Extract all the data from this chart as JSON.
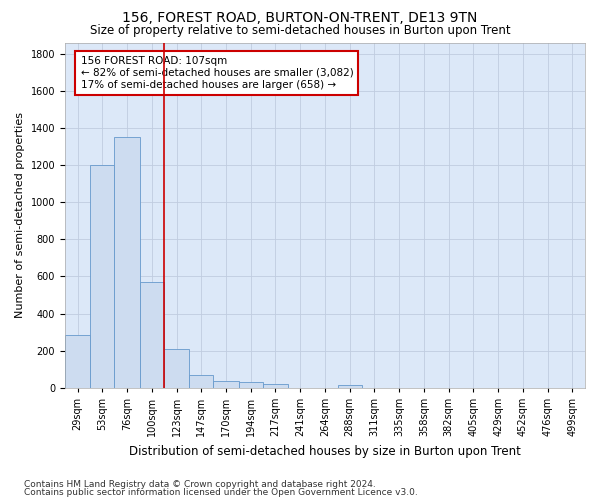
{
  "title": "156, FOREST ROAD, BURTON-ON-TRENT, DE13 9TN",
  "subtitle": "Size of property relative to semi-detached houses in Burton upon Trent",
  "xlabel": "Distribution of semi-detached houses by size in Burton upon Trent",
  "ylabel": "Number of semi-detached properties",
  "footer1": "Contains HM Land Registry data © Crown copyright and database right 2024.",
  "footer2": "Contains public sector information licensed under the Open Government Licence v3.0.",
  "annotation_line1": "156 FOREST ROAD: 107sqm",
  "annotation_line2": "← 82% of semi-detached houses are smaller (3,082)",
  "annotation_line3": "17% of semi-detached houses are larger (658) →",
  "bin_edges": [
    17,
    41,
    64,
    88,
    111,
    135,
    158,
    182,
    205,
    229,
    252,
    276,
    299,
    323,
    346,
    370,
    393,
    417,
    440,
    464,
    487,
    511
  ],
  "bin_labels": [
    "29sqm",
    "53sqm",
    "76sqm",
    "100sqm",
    "123sqm",
    "147sqm",
    "170sqm",
    "194sqm",
    "217sqm",
    "241sqm",
    "264sqm",
    "288sqm",
    "311sqm",
    "335sqm",
    "358sqm",
    "382sqm",
    "405sqm",
    "429sqm",
    "452sqm",
    "476sqm",
    "499sqm"
  ],
  "bar_values": [
    285,
    1200,
    1350,
    570,
    210,
    70,
    38,
    32,
    22,
    0,
    0,
    15,
    0,
    0,
    0,
    0,
    0,
    0,
    0,
    0,
    0
  ],
  "bar_color": "#cddcf0",
  "bar_edge_color": "#6699cc",
  "vline_color": "#cc0000",
  "vline_x": 111,
  "annotation_box_color": "#cc0000",
  "ylim": [
    0,
    1860
  ],
  "yticks": [
    0,
    200,
    400,
    600,
    800,
    1000,
    1200,
    1400,
    1600,
    1800
  ],
  "grid_color": "#c0cce0",
  "bg_color": "#dce8f8",
  "title_fontsize": 10,
  "subtitle_fontsize": 8.5,
  "tick_fontsize": 7,
  "ylabel_fontsize": 8,
  "xlabel_fontsize": 8.5,
  "footer_fontsize": 6.5,
  "annotation_fontsize": 7.5
}
